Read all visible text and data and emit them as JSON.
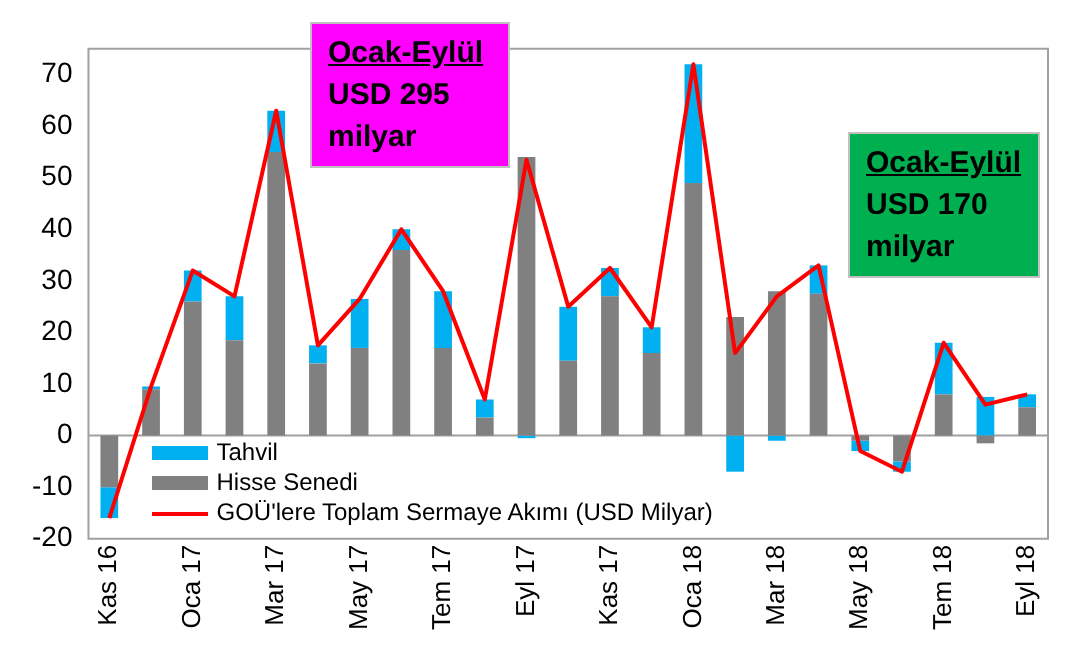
{
  "chart_data": {
    "type": "bar",
    "stacked": true,
    "categories": [
      "Kas 16",
      null,
      "Oca 17",
      null,
      "Mar 17",
      null,
      "May 17",
      null,
      "Tem 17",
      null,
      "Eyl 17",
      null,
      "Kas 17",
      null,
      "Oca 18",
      null,
      "Mar 18",
      null,
      "May 18",
      null,
      "Tem 18",
      null,
      "Eyl 18"
    ],
    "series": [
      {
        "name": "Hisse Senedi",
        "color": "#808080",
        "values": [
          -10,
          9,
          26,
          18.5,
          55,
          14,
          17,
          36,
          17,
          3.5,
          54,
          14.5,
          27,
          16,
          49,
          23,
          28,
          27.5,
          -1,
          -5,
          8,
          -1.5,
          5.5
        ]
      },
      {
        "name": "Tahvil",
        "color": "#00b0f0",
        "values": [
          -6,
          0.5,
          6,
          8.5,
          8,
          3.5,
          9.5,
          4,
          11,
          3.5,
          -0.5,
          10.5,
          5.5,
          5,
          23,
          -7,
          -1,
          5.5,
          -2,
          -2,
          10,
          7.5,
          2.5
        ]
      },
      {
        "name": "GOÜ'lere Toplam Sermaye Akımı (USD Milyar)",
        "type": "line",
        "color": "#ff0000",
        "marker": "none",
        "values": [
          -16,
          9.5,
          32,
          27,
          63,
          17.5,
          26.5,
          40,
          28,
          7,
          53.5,
          25,
          32.5,
          21,
          72,
          16,
          27,
          33,
          -3,
          -7,
          18,
          6,
          8
        ]
      }
    ],
    "ylim": [
      -20,
      75
    ],
    "yticks": [
      -20,
      -10,
      0,
      10,
      20,
      30,
      40,
      50,
      60,
      70
    ],
    "grid": false,
    "ref_lines": [
      {
        "axis": "y",
        "value": 0,
        "color": "#a0a0a0"
      }
    ],
    "legend": "bottom left",
    "annotations": [
      "Ocak-Eylül\nUSD 295\nmilyar",
      "Ocak-Eylül\nUSD 170\nmilyar"
    ]
  }
}
